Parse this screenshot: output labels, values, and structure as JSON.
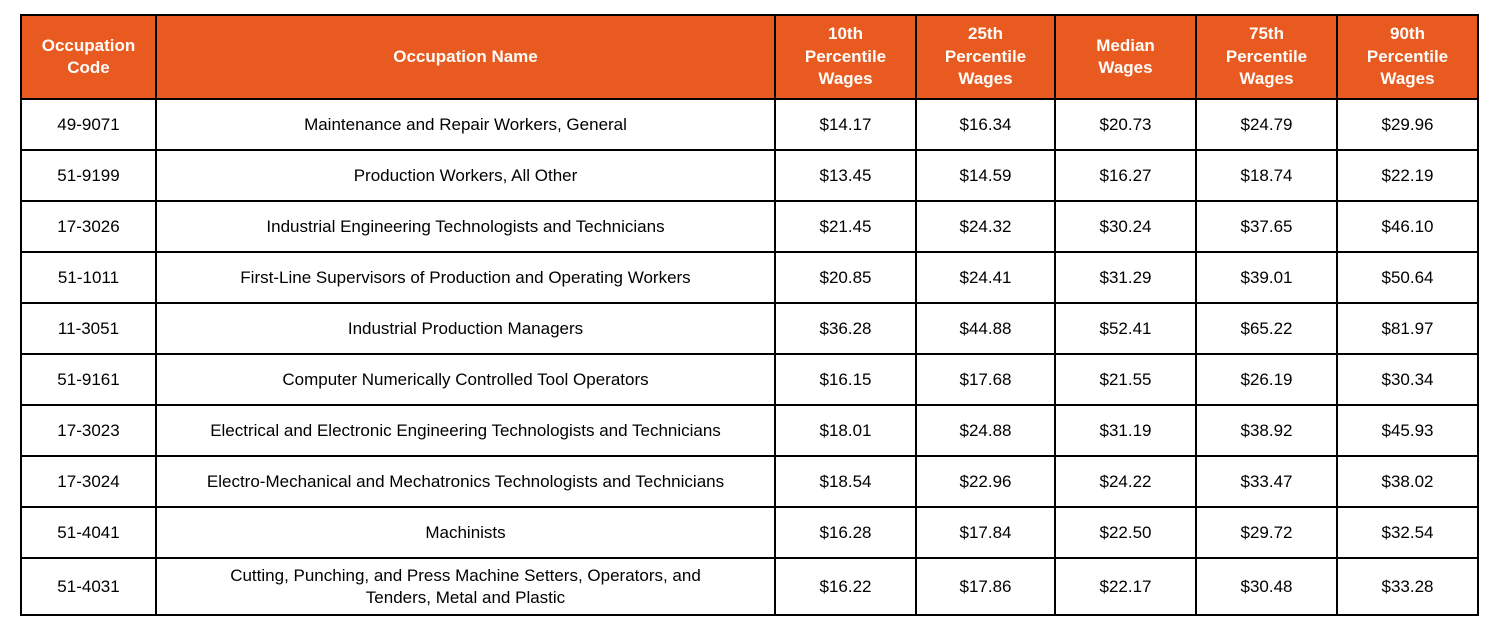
{
  "colors": {
    "header_bg": "#E85A20",
    "header_text": "#FFFDFA",
    "border": "#000000",
    "row_bg": "#FFFFFF",
    "text": "#000000"
  },
  "table": {
    "columns": [
      {
        "key": "code",
        "label": "Occupation\nCode"
      },
      {
        "key": "name",
        "label": "Occupation Name"
      },
      {
        "key": "p10",
        "label": "10th\nPercentile\nWages"
      },
      {
        "key": "p25",
        "label": "25th\nPercentile\nWages"
      },
      {
        "key": "median",
        "label": "Median\nWages"
      },
      {
        "key": "p75",
        "label": "75th\nPercentile\nWages"
      },
      {
        "key": "p90",
        "label": "90th\nPercentile\nWages"
      }
    ],
    "rows": [
      [
        "49-9071",
        "Maintenance and Repair Workers, General",
        "$14.17",
        "$16.34",
        "$20.73",
        "$24.79",
        "$29.96"
      ],
      [
        "51-9199",
        "Production Workers, All Other",
        "$13.45",
        "$14.59",
        "$16.27",
        "$18.74",
        "$22.19"
      ],
      [
        "17-3026",
        "Industrial Engineering Technologists and Technicians",
        "$21.45",
        "$24.32",
        "$30.24",
        "$37.65",
        "$46.10"
      ],
      [
        "51-1011",
        "First-Line Supervisors of Production and Operating Workers",
        "$20.85",
        "$24.41",
        "$31.29",
        "$39.01",
        "$50.64"
      ],
      [
        "11-3051",
        "Industrial Production Managers",
        "$36.28",
        "$44.88",
        "$52.41",
        "$65.22",
        "$81.97"
      ],
      [
        "51-9161",
        "Computer Numerically Controlled Tool Operators",
        "$16.15",
        "$17.68",
        "$21.55",
        "$26.19",
        "$30.34"
      ],
      [
        "17-3023",
        "Electrical and Electronic Engineering Technologists and Technicians",
        "$18.01",
        "$24.88",
        "$31.19",
        "$38.92",
        "$45.93"
      ],
      [
        "17-3024",
        "Electro-Mechanical and Mechatronics Technologists and Technicians",
        "$18.54",
        "$22.96",
        "$24.22",
        "$33.47",
        "$38.02"
      ],
      [
        "51-4041",
        "Machinists",
        "$16.28",
        "$17.84",
        "$22.50",
        "$29.72",
        "$32.54"
      ],
      [
        "51-4031",
        "Cutting, Punching, and Press Machine Setters, Operators, and\nTenders, Metal and Plastic",
        "$16.22",
        "$17.86",
        "$22.17",
        "$30.48",
        "$33.28"
      ]
    ]
  }
}
